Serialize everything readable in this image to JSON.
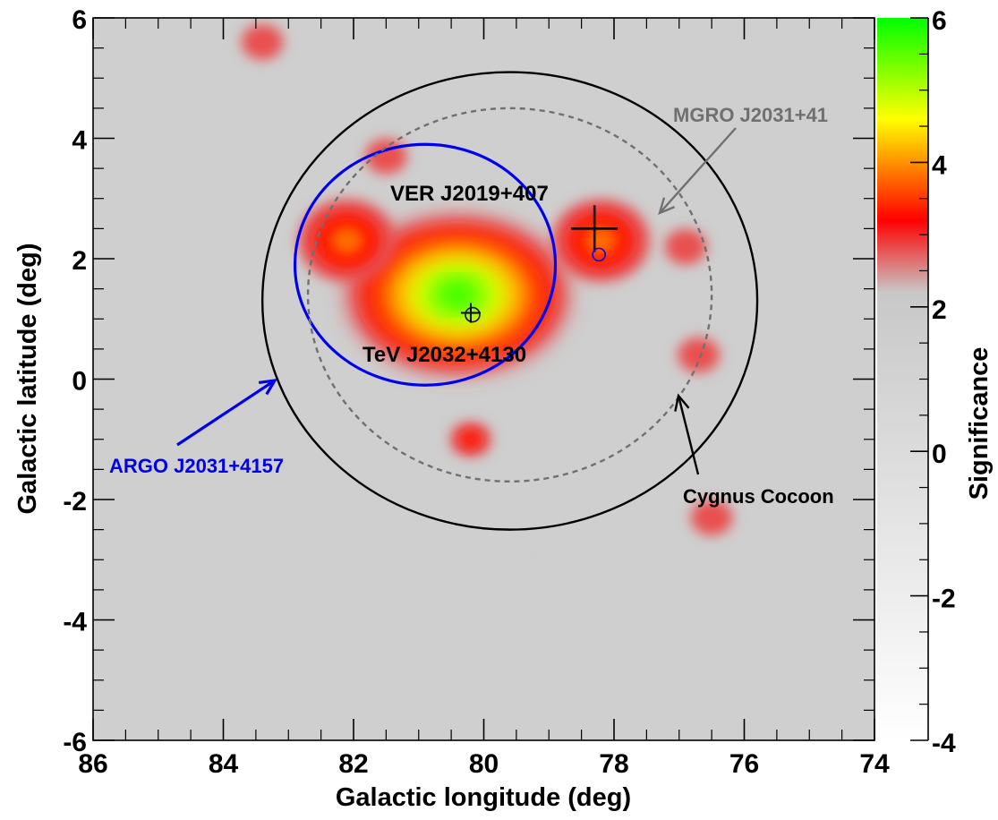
{
  "chart_data": {
    "type": "heatmap",
    "title": "",
    "xlabel": "Galactic longitude (deg)",
    "ylabel": "Galactic latitude (deg)",
    "xlim": [
      86,
      74
    ],
    "ylim": [
      -6,
      6
    ],
    "x_ticks": [
      86,
      84,
      82,
      80,
      78,
      76,
      74
    ],
    "y_ticks": [
      -6,
      -4,
      -2,
      0,
      2,
      4,
      6
    ],
    "colorbar": {
      "label": "Significance",
      "range": [
        -4,
        6
      ],
      "ticks": [
        -4,
        -2,
        0,
        2,
        4,
        6
      ],
      "palette": [
        "#ffffff",
        "#c8c8c8",
        "#ff0000",
        "#ffff00",
        "#00ff00"
      ]
    },
    "grid": false,
    "heatmap_summary": {
      "background_significance": "about -2 to 2 (grey)",
      "hotspots": [
        {
          "l": 80.4,
          "b": 1.4,
          "peak_significance": 6.0
        },
        {
          "l": 82.1,
          "b": 2.3,
          "peak_significance": 4.0
        },
        {
          "l": 80.2,
          "b": -1.0,
          "peak_significance": 3.5
        },
        {
          "l": 78.2,
          "b": 2.3,
          "peak_significance": 4.0
        },
        {
          "l": 83.4,
          "b": 5.6,
          "peak_significance": 3.2
        },
        {
          "l": 76.7,
          "b": 0.4,
          "peak_significance": 3.2
        },
        {
          "l": 76.9,
          "b": 2.2,
          "peak_significance": 3.0
        },
        {
          "l": 76.5,
          "b": -2.3,
          "peak_significance": 3.0
        },
        {
          "l": 81.5,
          "b": 3.7,
          "peak_significance": 3.0
        }
      ]
    },
    "sources": [
      {
        "name": "ARGO J2031+4157",
        "l": 80.9,
        "b": 1.9,
        "r": 2.0,
        "style": "solid",
        "color": "#0000ee",
        "label_text_color": "#0000ee"
      },
      {
        "name": "MGRO J2031+41",
        "l": 79.6,
        "b": 1.4,
        "r": 3.1,
        "style": "dashed",
        "color": "#707070",
        "label_text_color": "#707070"
      },
      {
        "name": "Cygnus Cocoon",
        "l": 79.6,
        "b": 1.3,
        "r": 3.8,
        "style": "solid",
        "color": "#000000",
        "label_text_color": "#000000"
      },
      {
        "name": "TeV J2032+4130",
        "l": 80.2,
        "b": 1.1,
        "marker": "cross",
        "color": "#000000",
        "label_text_color": "#000000"
      },
      {
        "name": "VER J2019+407",
        "l": 78.3,
        "b": 2.5,
        "marker": "cross",
        "color": "#000000",
        "label_text_color": "#000000"
      }
    ]
  }
}
